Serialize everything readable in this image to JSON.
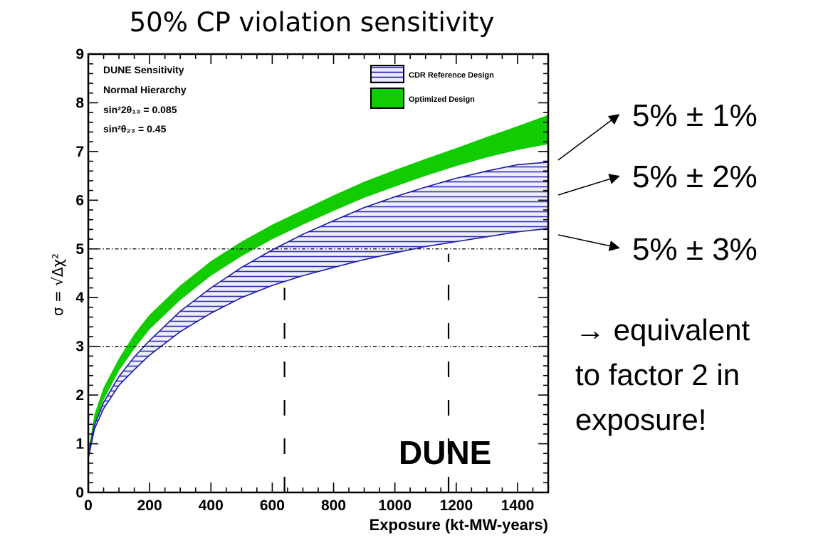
{
  "slide": {
    "title": "50% CP violation sensitivity",
    "annotations": [
      "5% ± 1%",
      "5% ± 2%",
      "5% ± 3%"
    ],
    "note_lines": [
      "→ equivalent",
      "to factor 2 in",
      "exposure!"
    ],
    "colors": {
      "green": "#11cc00",
      "blue_hatch": "#1a1aa8",
      "blue_fill": "#ececf8",
      "arrow": "#000000"
    }
  },
  "chart_data": {
    "type": "area",
    "xlabel": "Exposure (kt-MW-years)",
    "ylabel": "σ = √Δχ²",
    "xlim": [
      0,
      1500
    ],
    "ylim": [
      0,
      9
    ],
    "xticks": [
      0,
      200,
      400,
      600,
      800,
      1000,
      1200,
      1400
    ],
    "yticks": [
      0,
      1,
      2,
      3,
      4,
      5,
      6,
      7,
      8,
      9
    ],
    "info_lines": [
      "DUNE Sensitivity",
      "Normal Hierarchy",
      "sin²2θ₁₃ = 0.085",
      "sin²θ₂₃ = 0.45"
    ],
    "watermark": "DUNE",
    "legend": {
      "position": "top-right",
      "entries": [
        "CDR Reference Design",
        "Optimized Design"
      ]
    },
    "reference_lines": [
      {
        "axis": "y",
        "value": 3,
        "style": "dash-dot"
      },
      {
        "axis": "y",
        "value": 5,
        "style": "dash-dot"
      },
      {
        "axis": "x",
        "value": 640,
        "style": "long-dash",
        "range": [
          0,
          4.2
        ]
      },
      {
        "axis": "x",
        "value": 1175,
        "style": "long-dash",
        "range": [
          0,
          4.9
        ]
      }
    ],
    "x": [
      0,
      20,
      50,
      100,
      150,
      200,
      300,
      400,
      500,
      600,
      700,
      800,
      900,
      1000,
      1100,
      1200,
      1300,
      1400,
      1500
    ],
    "series": [
      {
        "name": "Optimized Design",
        "style": "solid",
        "lower": [
          0.75,
          1.4,
          1.9,
          2.5,
          2.95,
          3.35,
          3.95,
          4.45,
          4.85,
          5.2,
          5.5,
          5.78,
          6.05,
          6.28,
          6.5,
          6.7,
          6.88,
          7.03,
          7.15
        ],
        "upper": [
          0.85,
          1.6,
          2.15,
          2.75,
          3.25,
          3.65,
          4.25,
          4.75,
          5.15,
          5.5,
          5.8,
          6.1,
          6.38,
          6.62,
          6.85,
          7.07,
          7.3,
          7.52,
          7.75
        ]
      },
      {
        "name": "CDR Reference Design",
        "style": "hatched",
        "lower": [
          0.7,
          1.3,
          1.72,
          2.2,
          2.52,
          2.82,
          3.3,
          3.68,
          4.0,
          4.25,
          4.45,
          4.62,
          4.78,
          4.92,
          5.05,
          5.15,
          5.25,
          5.35,
          5.42
        ],
        "upper": [
          0.75,
          1.38,
          1.85,
          2.38,
          2.78,
          3.12,
          3.72,
          4.2,
          4.62,
          4.98,
          5.3,
          5.58,
          5.85,
          6.07,
          6.27,
          6.45,
          6.6,
          6.73,
          6.78
        ]
      }
    ]
  }
}
